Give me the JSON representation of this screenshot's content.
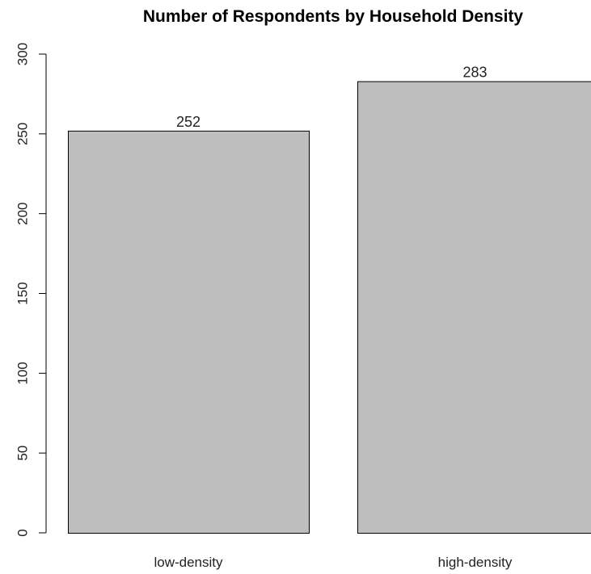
{
  "chart_data": {
    "type": "bar",
    "title": "Number of Respondents by Household Density",
    "xlabel": "",
    "ylabel": "",
    "categories": [
      "low-density",
      "high-density"
    ],
    "values": [
      252,
      283
    ],
    "data_labels": [
      "252",
      "283"
    ],
    "ylim": [
      0,
      300
    ],
    "yticks": [
      0,
      50,
      100,
      150,
      200,
      250,
      300
    ],
    "grid": false,
    "legend": "none",
    "bar_color": "#bebebe",
    "bar_border_color": "#000000"
  }
}
